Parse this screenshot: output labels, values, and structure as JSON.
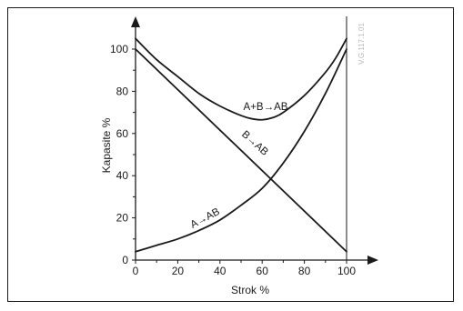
{
  "chart_data": {
    "type": "line",
    "xlabel": "Strok %",
    "ylabel": "Kapasite %",
    "xlim": [
      0,
      100
    ],
    "ylim": [
      0,
      100
    ],
    "x_ticks": [
      "0",
      "20",
      "40",
      "60",
      "80",
      "100"
    ],
    "y_ticks": [
      "0",
      "20",
      "40",
      "60",
      "80",
      "100"
    ],
    "grid": false,
    "legend": "none",
    "curve_color": "#1a1a1a",
    "series": [
      {
        "name": "A+B→AB",
        "x": [
          0,
          10,
          20,
          30,
          40,
          50,
          55,
          60,
          65,
          70,
          80,
          90,
          95,
          100
        ],
        "y": [
          105,
          95,
          87,
          79,
          73,
          68.5,
          67,
          66.5,
          67.5,
          70,
          78,
          89,
          96,
          105
        ]
      },
      {
        "name": "B→AB",
        "x": [
          0,
          100
        ],
        "y": [
          100,
          4
        ]
      },
      {
        "name": "A→AB",
        "x": [
          0,
          10,
          20,
          30,
          40,
          50,
          60,
          70,
          80,
          90,
          100
        ],
        "y": [
          4,
          7,
          10,
          14,
          19,
          26,
          34,
          46,
          61,
          79,
          100
        ]
      }
    ],
    "code_text": "V.G.117.1.01"
  }
}
